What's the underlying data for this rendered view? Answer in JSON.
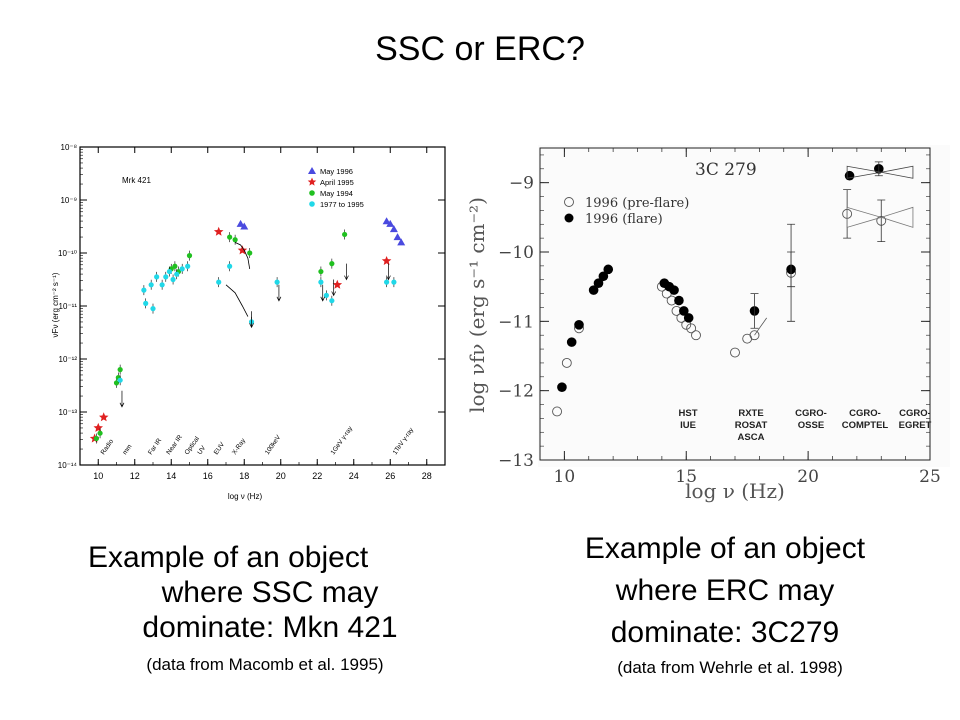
{
  "slide": {
    "title": "SSC or ERC?",
    "left_caption_line1": "Example of an object",
    "left_caption_line2": "where SSC may",
    "left_caption_line3": "dominate:  Mkn 421",
    "left_source": "(data from Macomb et al. 1995)",
    "right_caption_line1": "Example of an object",
    "right_caption_line2": "where ERC may",
    "right_caption_line3": "dominate:  3C279",
    "right_source": "(data from Wehrle et al. 1998)"
  },
  "chart_data": [
    {
      "type": "scatter",
      "object_label": "Mrk 421",
      "xlabel": "log ν (Hz)",
      "ylabel": "νFν (erg cm⁻² s⁻¹)",
      "xlim": [
        9,
        29
      ],
      "ylim_log10": [
        -14,
        -8
      ],
      "yscale": "log",
      "xticks": [
        "10",
        "12",
        "14",
        "16",
        "18",
        "20",
        "22",
        "24",
        "26",
        "28"
      ],
      "yticks": [
        "10⁻⁸",
        "10⁻⁹",
        "10⁻¹⁰",
        "10⁻¹¹",
        "10⁻¹²",
        "10⁻¹³",
        "10⁻¹⁴"
      ],
      "band_labels": [
        "Radio",
        "mm",
        "Far IR",
        "Near IR",
        "Optical",
        "UV",
        "EUV",
        "X-Ray",
        "100keV",
        "1GeV γ-ray",
        "1TeV γ-ray"
      ],
      "legend_position": "top-right",
      "series": [
        {
          "name": "May 1996",
          "color": "#4a4adf",
          "marker": "triangle",
          "x": [
            17.8,
            18.0,
            25.8,
            26.0,
            26.2,
            26.4,
            26.6
          ],
          "y": [
            -9.45,
            -9.5,
            -9.4,
            -9.45,
            -9.55,
            -9.7,
            -9.8
          ]
        },
        {
          "name": "April 1995",
          "color": "#e02020",
          "marker": "star",
          "x": [
            9.8,
            10.0,
            10.3,
            16.6,
            17.9,
            23.1,
            25.8
          ],
          "y": [
            -13.5,
            -13.3,
            -13.1,
            -9.6,
            -9.95,
            -10.6,
            -10.15
          ]
        },
        {
          "name": "May 1994",
          "color": "#20c020",
          "marker": "circle",
          "x": [
            9.9,
            10.1,
            11.0,
            11.1,
            11.2,
            14.0,
            14.2,
            14.4,
            15.0,
            17.2,
            17.5,
            18.3,
            22.2,
            22.8,
            23.5
          ],
          "y": [
            -13.5,
            -13.4,
            -12.45,
            -12.35,
            -12.2,
            -10.3,
            -10.25,
            -10.35,
            -10.05,
            -9.7,
            -9.75,
            -10.0,
            -10.35,
            -10.2,
            -9.65
          ]
        },
        {
          "name": "1977 to 1995",
          "color": "#20d8e8",
          "marker": "circle",
          "x": [
            11.2,
            12.5,
            12.6,
            12.9,
            13.0,
            13.2,
            13.5,
            13.7,
            13.9,
            14.1,
            14.3,
            14.6,
            14.9,
            16.6,
            17.2,
            18.4,
            19.8,
            22.2,
            22.5,
            22.8,
            25.8,
            26.2
          ],
          "y": [
            -12.4,
            -10.7,
            -10.95,
            -10.6,
            -11.05,
            -10.45,
            -10.6,
            -10.45,
            -10.35,
            -10.5,
            -10.4,
            -10.3,
            -10.25,
            -10.55,
            -10.25,
            -11.3,
            -10.55,
            -10.55,
            -10.8,
            -10.9,
            -10.55,
            -10.55
          ]
        }
      ]
    },
    {
      "type": "scatter",
      "object_label": "3C 279",
      "xlabel": "log ν   (Hz)",
      "ylabel": "log νfν   (erg s⁻¹ cm⁻²)",
      "xlim": [
        9,
        25
      ],
      "ylim": [
        -13,
        -8.5
      ],
      "xticks": [
        "10",
        "15",
        "20",
        "25"
      ],
      "yticks": [
        "−9",
        "−10",
        "−11",
        "−12",
        "−13"
      ],
      "band_labels": [
        [
          "HST",
          "IUE"
        ],
        [
          "RXTE",
          "ROSAT",
          "ASCA"
        ],
        [
          "CGRO-",
          "OSSE"
        ],
        [
          "CGRO-",
          "COMPTEL"
        ],
        [
          "CGRO-",
          "EGRET"
        ]
      ],
      "legend_position": "top-left",
      "series": [
        {
          "name": "1996 (pre-flare)",
          "marker": "open-circle",
          "x": [
            9.7,
            10.1,
            10.6,
            14.0,
            14.2,
            14.4,
            14.6,
            14.8,
            15.0,
            15.2,
            15.4,
            17.0,
            17.5,
            17.8,
            19.3,
            21.6,
            23.0
          ],
          "y": [
            -12.3,
            -11.6,
            -11.1,
            -10.5,
            -10.6,
            -10.7,
            -10.85,
            -10.95,
            -11.05,
            -11.1,
            -11.2,
            -11.45,
            -11.25,
            -11.2,
            -10.3,
            -9.45,
            -9.55
          ]
        },
        {
          "name": "1996 (flare)",
          "marker": "filled-circle",
          "x": [
            9.9,
            10.3,
            10.6,
            11.2,
            11.4,
            11.6,
            11.8,
            14.1,
            14.3,
            14.5,
            14.7,
            14.9,
            15.1,
            17.8,
            19.3,
            21.7,
            22.9
          ],
          "y": [
            -11.95,
            -11.3,
            -11.05,
            -10.55,
            -10.45,
            -10.35,
            -10.25,
            -10.45,
            -10.5,
            -10.55,
            -10.7,
            -10.85,
            -10.95,
            -10.85,
            -10.25,
            -8.9,
            -8.8
          ]
        }
      ]
    }
  ]
}
